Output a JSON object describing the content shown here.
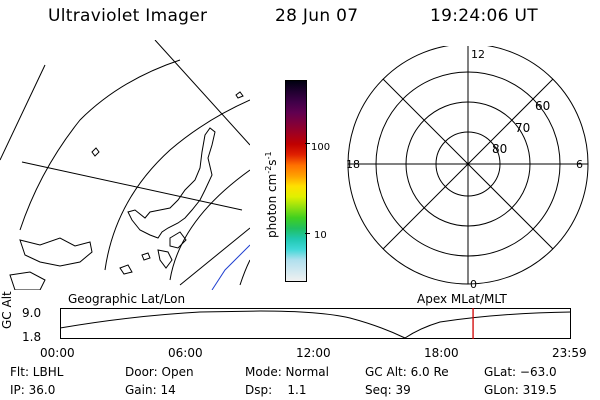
{
  "header": {
    "instrument": "Ultraviolet Imager",
    "date": "28 Jun 07",
    "time": "19:24:06 UT"
  },
  "colorbar": {
    "unit": "photon cm",
    "unit_exp1": "-2",
    "unit_mid": "s",
    "unit_exp2": "-1",
    "ticks": [
      "100",
      "10"
    ],
    "colors": [
      "#f0f0f0",
      "#d0e8f0",
      "#b0e0ee",
      "#40d8d8",
      "#20c8b0",
      "#20c060",
      "#40d020",
      "#90e010",
      "#e0f000",
      "#ffe000",
      "#ffa000",
      "#ff7000",
      "#e02000",
      "#c00000",
      "#a00020",
      "#80003a",
      "#600050",
      "#400048",
      "#200030",
      "#000010"
    ]
  },
  "polar": {
    "mlt_labels": {
      "top": "12",
      "right": "6",
      "left": "18",
      "bottom": "0"
    },
    "lat_labels": [
      "60",
      "70",
      "80"
    ]
  },
  "timeline": {
    "left_label": "Geographic Lat/Lon",
    "right_label": "Apex MLat/MLT",
    "axis_title": "GC Alt",
    "y_ticks": [
      "9.0",
      "1.8"
    ],
    "x_ticks": [
      "00:00",
      "06:00",
      "12:00",
      "18:00",
      "23:59"
    ],
    "marker_color": "#d00000",
    "marker_time_hours": 19.4
  },
  "status": {
    "flt": "Flt: LBHL",
    "ip": "IP: 36.0",
    "door": "Door: Open",
    "gain": "Gain: 14",
    "mode": "Mode: Normal",
    "dsp": "Dsp:    1.1",
    "gcalt": "GC Alt: 6.0 Re",
    "seq": "Seq: 39",
    "glat": "GLat: −63.0",
    "glon": "GLon: 319.5"
  }
}
